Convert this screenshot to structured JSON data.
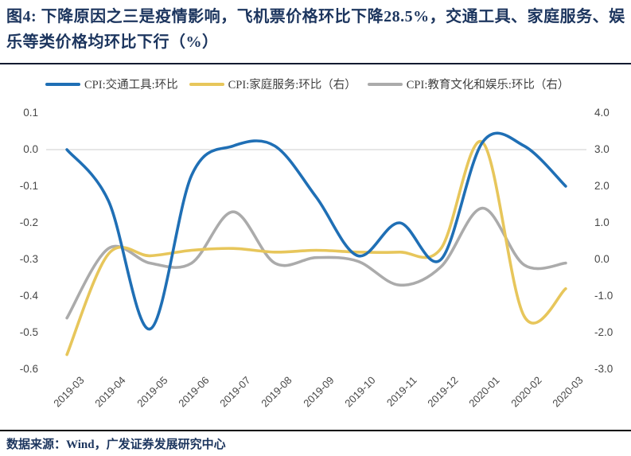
{
  "title": "图4: 下降原因之三是疫情影响，飞机票价格环比下降28.5%，交通工具、家庭服务、娱乐等类价格均环比下行（%）",
  "source": "数据来源：Wind，广发证券发展研究中心",
  "colors": {
    "title_navy": "#1c355e",
    "gridline": "#d8d8d8",
    "axis_text": "#474747",
    "series_blue": "#1f6fb5",
    "series_yellow": "#e7c65b",
    "series_gray": "#ababab"
  },
  "chart_data": {
    "type": "line",
    "title": "图4: 下降原因之三是疫情影响，飞机票价格环比下降28.5%，交通工具、家庭服务、娱乐等类价格均环比下行（%）",
    "categories": [
      "2019-03",
      "2019-04",
      "2019-05",
      "2019-06",
      "2019-07",
      "2019-08",
      "2019-09",
      "2019-10",
      "2019-11",
      "2019-12",
      "2020-01",
      "2020-02",
      "2020-03"
    ],
    "series": [
      {
        "key": "transport-tools",
        "name": "CPI:交通工具:环比",
        "axis": "left",
        "color": "#1f6fb5",
        "values": [
          0.0,
          -0.14,
          -0.49,
          -0.07,
          0.01,
          0.01,
          -0.13,
          -0.29,
          -0.2,
          -0.3,
          0.02,
          0.01,
          -0.1
        ]
      },
      {
        "key": "household-services",
        "name": "CPI:家庭服务:环比（右）",
        "axis": "right",
        "color": "#e7c65b",
        "values": [
          -2.6,
          0.15,
          0.1,
          0.25,
          0.3,
          0.2,
          0.25,
          0.2,
          0.2,
          0.3,
          3.2,
          -1.55,
          -0.8
        ]
      },
      {
        "key": "education-culture-entertainment",
        "name": "CPI:教育文化和娱乐:环比（右）",
        "axis": "right",
        "color": "#ababab",
        "values": [
          -1.6,
          0.3,
          -0.1,
          -0.1,
          1.3,
          -0.1,
          0.05,
          -0.05,
          -0.7,
          -0.2,
          1.4,
          -0.15,
          -0.1
        ]
      }
    ],
    "axes": {
      "left": {
        "ticks": [
          "0.1",
          "0.0",
          "-0.1",
          "-0.2",
          "-0.3",
          "-0.4",
          "-0.5",
          "-0.6"
        ]
      },
      "right": {
        "ticks": [
          "4.0",
          "3.0",
          "2.0",
          "1.0",
          "0.0",
          "-1.0",
          "-2.0",
          "-3.0"
        ]
      }
    },
    "gridlines": {
      "left_values": [
        0.0
      ]
    },
    "legend_position": "top",
    "smoothed": true
  }
}
